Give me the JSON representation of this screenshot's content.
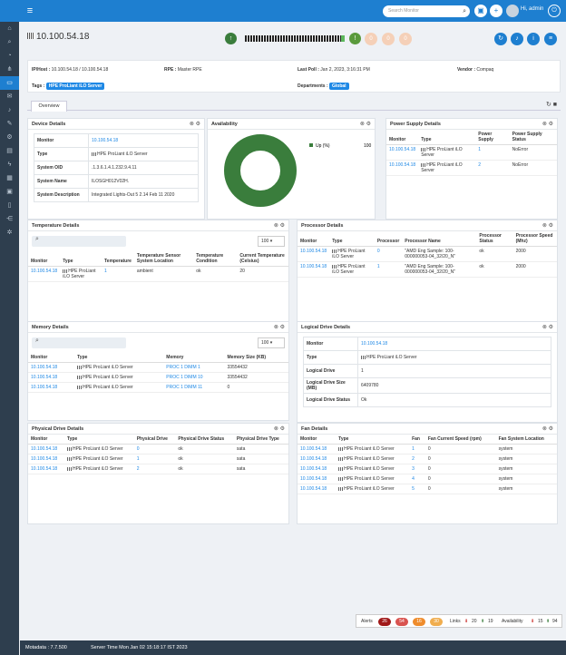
{
  "topbar": {
    "search_placeholder": "Search Monitor",
    "user_label": "Hi, admin"
  },
  "page": {
    "host_title": "10.100.54.18"
  },
  "colors": {
    "primary": "#1e7fd0",
    "sidebar": "#2e3e4e",
    "up": "#3a7d3c",
    "pill_red": "#c9302c",
    "pill_orange": "#ef8c2c",
    "pill_yellow": "#f0ad4e"
  },
  "info": {
    "ip_label": "IP/Host :",
    "ip_value": "10.100.54.18 / 10.100.54.18",
    "rpe_label": "RPE :",
    "rpe_value": "Master RPE",
    "poll_label": "Last Poll :",
    "poll_value": "Jan 2, 2023, 3:16:31 PM",
    "vendor_label": "Vendor :",
    "vendor_value": "Compaq",
    "tags_label": "Tags :",
    "tag_value": "HPE ProLiant iLO Server",
    "dept_label": "Departments :",
    "dept_value": "Global"
  },
  "tabs": {
    "overview": "Overview"
  },
  "device_details": {
    "title": "Device Details",
    "rows": [
      {
        "k": "Monitor",
        "v": "10.100.54.18"
      },
      {
        "k": "Type",
        "v": "HPE ProLiant iLO Server"
      },
      {
        "k": "System OID",
        "v": ".1.3.6.1.4.1.232.9.4.11"
      },
      {
        "k": "System Name",
        "v": "ILOSGH012V02H."
      },
      {
        "k": "System Description",
        "v": "Integrated Lights-Out 5 2.14 Feb 11 2020"
      }
    ]
  },
  "availability": {
    "title": "Availability",
    "legend_label": "Up (%)",
    "legend_value": "100"
  },
  "power_supply": {
    "title": "Power Supply Details",
    "headers": [
      "Monitor",
      "Type",
      "Power Supply",
      "Power Supply Status"
    ],
    "rows": [
      {
        "monitor": "10.100.54.18",
        "type": "HPE ProLiant iLO Server",
        "ps": "1",
        "status": "NoError"
      },
      {
        "monitor": "10.100.54.18",
        "type": "HPE ProLiant iLO Server",
        "ps": "2",
        "status": "NoError"
      }
    ]
  },
  "temperature": {
    "title": "Temperature Details",
    "page_size": "100",
    "headers": [
      "Monitor",
      "Type",
      "Temperature",
      "Temperature Sensor System Location",
      "Temperature Condition",
      "Current Temperature (Celsius)"
    ],
    "rows": [
      {
        "monitor": "10.100.54.18",
        "type": "HPE ProLiant iLO Server",
        "temp": "1",
        "loc": "ambient",
        "cond": "ok",
        "cur": "20"
      }
    ]
  },
  "processor": {
    "title": "Processor Details",
    "headers": [
      "Monitor",
      "Type",
      "Processor",
      "Processor Name",
      "Processor Status",
      "Processor Speed (Mhz)"
    ],
    "rows": [
      {
        "monitor": "10.100.54.18",
        "type": "HPE ProLiant iLO Server",
        "proc": "0",
        "name": "\"AMD Eng Sample: 100-000000053-04_32/20_N\"",
        "status": "ok",
        "speed": "2000"
      },
      {
        "monitor": "10.100.54.18",
        "type": "HPE ProLiant iLO Server",
        "proc": "1",
        "name": "\"AMD Eng Sample: 100-000000053-04_32/20_N\"",
        "status": "ok",
        "speed": "2000"
      }
    ]
  },
  "memory": {
    "title": "Memory Details",
    "page_size": "100",
    "headers": [
      "Monitor",
      "Type",
      "Memory",
      "Memory Size (KB)"
    ],
    "rows": [
      {
        "monitor": "10.100.54.18",
        "type": "HPE ProLiant iLO Server",
        "mem": "PROC 1 DIMM 1",
        "size": "33554432"
      },
      {
        "monitor": "10.100.54.18",
        "type": "HPE ProLiant iLO Server",
        "mem": "PROC 1 DIMM 10",
        "size": "33554432"
      },
      {
        "monitor": "10.100.54.18",
        "type": "HPE ProLiant iLO Server",
        "mem": "PROC 1 DIMM 11",
        "size": "0"
      }
    ]
  },
  "logical_drive": {
    "title": "Logical Drive Details",
    "rows": [
      {
        "k": "Monitor",
        "v": "10.100.54.18"
      },
      {
        "k": "Type",
        "v": "HPE ProLiant iLO Server"
      },
      {
        "k": "Logical Drive",
        "v": "1"
      },
      {
        "k": "Logical Drive Size (MB)",
        "v": "6409780"
      },
      {
        "k": "Logical Drive Status",
        "v": "Ok"
      }
    ]
  },
  "physical_drive": {
    "title": "Physical Drive Details",
    "headers": [
      "Monitor",
      "Type",
      "Physical Drive",
      "Physical Drive Status",
      "Physical Drive Type"
    ],
    "rows": [
      {
        "monitor": "10.100.54.18",
        "type": "HPE ProLiant iLO Server",
        "drive": "0",
        "status": "ok",
        "dtype": "sata"
      },
      {
        "monitor": "10.100.54.18",
        "type": "HPE ProLiant iLO Server",
        "drive": "1",
        "status": "ok",
        "dtype": "sata"
      },
      {
        "monitor": "10.100.54.18",
        "type": "HPE ProLiant iLO Server",
        "drive": "2",
        "status": "ok",
        "dtype": "sata"
      }
    ]
  },
  "fan": {
    "title": "Fan Details",
    "headers": [
      "Monitor",
      "Type",
      "Fan",
      "Fan Current Speed (rpm)",
      "Fan System Location"
    ],
    "rows": [
      {
        "monitor": "10.100.54.18",
        "type": "HPE ProLiant iLO Server",
        "fan": "1",
        "speed": "0",
        "loc": "system"
      },
      {
        "monitor": "10.100.54.18",
        "type": "HPE ProLiant iLO Server",
        "fan": "2",
        "speed": "0",
        "loc": "system"
      },
      {
        "monitor": "10.100.54.18",
        "type": "HPE ProLiant iLO Server",
        "fan": "3",
        "speed": "0",
        "loc": "system"
      },
      {
        "monitor": "10.100.54.18",
        "type": "HPE ProLiant iLO Server",
        "fan": "4",
        "speed": "0",
        "loc": "system"
      },
      {
        "monitor": "10.100.54.18",
        "type": "HPE ProLiant iLO Server",
        "fan": "5",
        "speed": "0",
        "loc": "system"
      }
    ]
  },
  "summary": {
    "alerts_label": "Alerts",
    "a1": "26",
    "a2": "54",
    "a3": "16",
    "a4": "30",
    "links_label": "Links",
    "links_down": "20",
    "links_up": "19",
    "avail_label": "Availability",
    "avail_down": "15",
    "avail_up": "94"
  },
  "footer": {
    "motadata": "Motadata : 7.7.500",
    "server_time": "Server Time  Mon Jan 02 15:18:17 IST 2023"
  }
}
